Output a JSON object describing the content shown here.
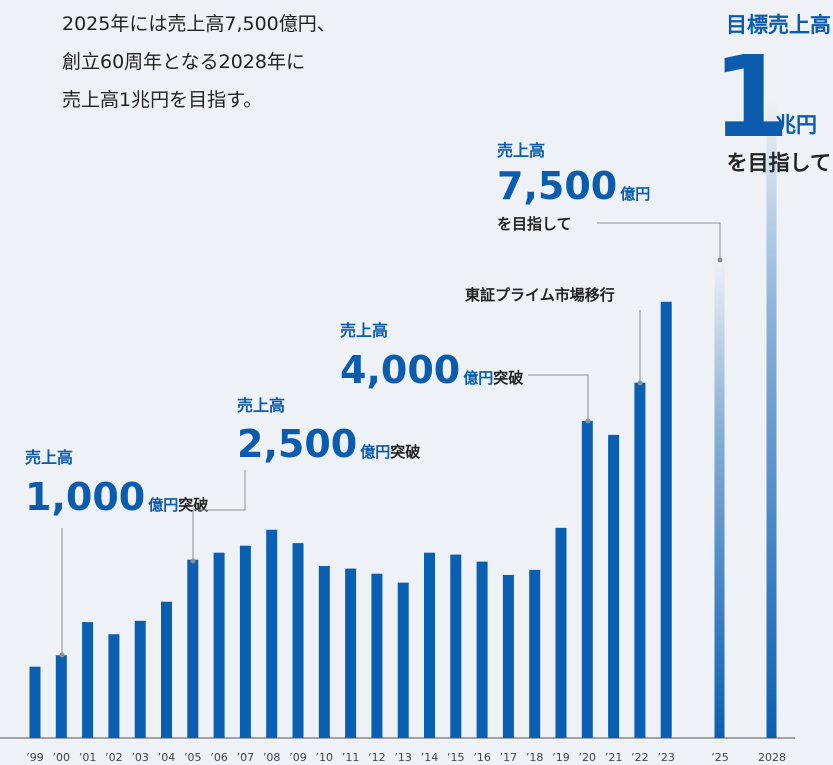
{
  "chart_data": {
    "type": "bar",
    "intro": [
      "2025年には売上高7,500億円、",
      "創立60周年となる2028年に",
      "売上高1兆円を目指す。"
    ],
    "target": {
      "heading": "目標売上高",
      "amount": "1",
      "unit": "兆円",
      "suffix": "を目指して"
    },
    "annotations": [
      {
        "label": "売上高",
        "amount": "1,000",
        "unit": "億円",
        "suffix": "突破"
      },
      {
        "label": "売上高",
        "amount": "2,500",
        "unit": "億円",
        "suffix": "突破"
      },
      {
        "label": "売上高",
        "amount": "4,000",
        "unit": "億円",
        "suffix": "突破"
      },
      {
        "text": "東証プライム市場移行"
      },
      {
        "label": "売上高",
        "amount": "7,500",
        "unit": "億円",
        "suffix": "を目指して"
      }
    ],
    "categories": [
      "’99",
      "’00",
      "’01",
      "’02",
      "’03",
      "’04",
      "’05",
      "’06",
      "’07",
      "’08",
      "’09",
      "’10",
      "’11",
      "’12",
      "’13",
      "’14",
      "’15",
      "’16",
      "’17",
      "’18",
      "’19",
      "’20",
      "’21",
      "’22",
      "’23",
      "’25",
      "2028"
    ],
    "values": [
      1120,
      1300,
      1820,
      1630,
      1840,
      2140,
      2800,
      2910,
      3020,
      3270,
      3060,
      2700,
      2660,
      2580,
      2440,
      2910,
      2880,
      2770,
      2560,
      2640,
      3300,
      4980,
      4760,
      5580,
      6850,
      7500,
      10000
    ],
    "color": "#0b5fb3",
    "ylim": [
      0,
      11400
    ]
  }
}
